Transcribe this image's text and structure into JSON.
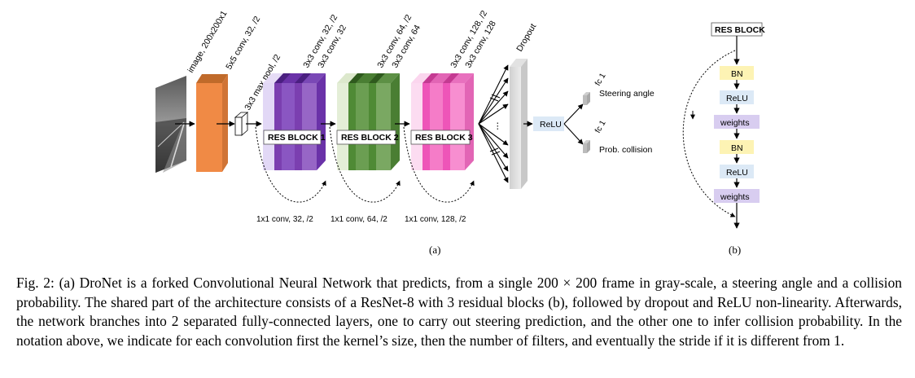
{
  "panel_a": {
    "input_label": "image, 200x200x1",
    "conv1_label": "5x5 conv, 32, /2",
    "pool_label": "3x3 max pool, /2",
    "blocks": [
      {
        "title": "RES BLOCK 1",
        "label_top": "3x3 conv, 32, /2",
        "label_bottom": "3x3 conv, 32",
        "skip_label": "1x1 conv, 32, /2",
        "color": "#7b3fb0"
      },
      {
        "title": "RES BLOCK 2",
        "label_top": "3x3 conv, 64, /2",
        "label_bottom": "3x3 conv, 64",
        "skip_label": "1x1 conv, 64, /2",
        "color": "#4f8a35"
      },
      {
        "title": "RES BLOCK 3",
        "label_top": "3x3 conv, 128, /2",
        "label_bottom": "3x3 conv, 128",
        "skip_label": "1x1 conv, 128, /2",
        "color": "#ee55b8"
      }
    ],
    "dropout_label": "Dropout",
    "relu_label": "ReLU",
    "fc_top_label": "fc 1",
    "fc_bottom_label": "fc 1",
    "steering_label": "Steering angle",
    "collision_label": "Prob. collision",
    "ellipsis": "⋮",
    "sublabel": "(a)"
  },
  "panel_b": {
    "title": "RES BLOCK",
    "layers": [
      "BN",
      "ReLU",
      "weights",
      "BN",
      "ReLU",
      "weights"
    ],
    "sublabel": "(b)"
  },
  "colors": {
    "conv_orange": "#f08a45",
    "bn_yellow": "#fdf3b4",
    "relu_blue": "#dce9f6",
    "weights_purple": "#d8cdf0"
  },
  "caption": "Fig. 2: (a) DroNet is a forked Convolutional Neural Network that predicts, from a single 200 × 200 frame in gray-scale, a steering angle and a collision probability. The shared part of the architecture consists of a ResNet-8 with 3 residual blocks (b), followed by dropout and ReLU non-linearity. Afterwards, the network branches into 2 separated fully-connected layers, one to carry out steering prediction, and the other one to infer collision probability. In the notation above, we indicate for each convolution first the kernel’s size, then the number of filters, and eventually the stride if it is different from 1."
}
